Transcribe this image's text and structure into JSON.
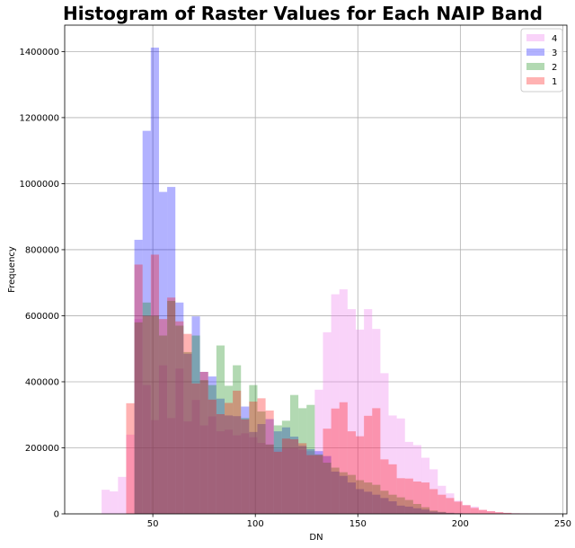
{
  "chart_data": {
    "type": "histogram",
    "title": "Histogram of Raster Values for Each NAIP Band",
    "xlabel": "DN",
    "ylabel": "Frequency",
    "xlim": [
      7,
      252
    ],
    "ylim": [
      0,
      1480000
    ],
    "xticks": [
      50,
      100,
      150,
      200,
      250
    ],
    "yticks": [
      0,
      200000,
      400000,
      600000,
      800000,
      1000000,
      1200000,
      1400000
    ],
    "grid": true,
    "legend": "top-right",
    "bin_start": 25,
    "bin_width": 4,
    "series": [
      {
        "name": "4",
        "color": "#ee82ee",
        "alpha": 0.35,
        "values": [
          73000,
          68000,
          112000,
          240000,
          590000,
          390000,
          284000,
          450000,
          290000,
          440000,
          280000,
          345000,
          268000,
          295000,
          250000,
          255000,
          238000,
          244000,
          232000,
          215000,
          210000,
          197000,
          198000,
          200000,
          195000,
          190000,
          376000,
          550000,
          665000,
          680000,
          620000,
          558000,
          620000,
          560000,
          426000,
          298000,
          289000,
          218000,
          208000,
          170000,
          135000,
          85000,
          62000,
          40000,
          27000,
          22000,
          12000,
          8000,
          5000,
          3000,
          2000,
          1500,
          1000,
          500,
          300
        ]
      },
      {
        "name": "3",
        "color": "#0000ff",
        "alpha": 0.3,
        "values": [
          0,
          0,
          0,
          0,
          830000,
          1160000,
          1412000,
          975000,
          990000,
          640000,
          485000,
          598000,
          430000,
          416000,
          349000,
          298000,
          296000,
          325000,
          248000,
          272000,
          287000,
          250000,
          262000,
          234000,
          206000,
          196000,
          190000,
          175000,
          128000,
          115000,
          95000,
          75000,
          67000,
          58000,
          48000,
          38000,
          25000,
          22000,
          17000,
          13000,
          7000,
          5000,
          3000,
          2000,
          1000,
          500,
          300,
          200,
          100,
          50,
          0,
          0,
          0,
          0,
          0
        ]
      },
      {
        "name": "2",
        "color": "#008000",
        "alpha": 0.3,
        "values": [
          0,
          0,
          0,
          0,
          580000,
          640000,
          600000,
          540000,
          645000,
          570000,
          490000,
          540000,
          405000,
          390000,
          510000,
          388000,
          450000,
          290000,
          390000,
          310000,
          210000,
          268000,
          282000,
          360000,
          320000,
          330000,
          180000,
          155000,
          140000,
          126000,
          118000,
          102000,
          95000,
          88000,
          70000,
          58000,
          50000,
          42000,
          30000,
          20000,
          10000,
          6000,
          3000,
          2000,
          1000,
          500,
          300,
          200,
          100,
          50,
          0,
          0,
          0,
          0,
          0
        ]
      },
      {
        "name": "1",
        "color": "#ff0000",
        "alpha": 0.3,
        "values": [
          0,
          0,
          0,
          335000,
          755000,
          600000,
          785000,
          590000,
          655000,
          583000,
          545000,
          395000,
          430000,
          346000,
          302000,
          336000,
          373000,
          286000,
          340000,
          350000,
          313000,
          188000,
          228000,
          226000,
          214000,
          178000,
          178000,
          258000,
          319000,
          338000,
          250000,
          235000,
          297000,
          320000,
          165000,
          150000,
          108000,
          107000,
          98000,
          95000,
          75000,
          58000,
          48000,
          37000,
          26000,
          18000,
          12000,
          8000,
          5000,
          3000,
          1500,
          700,
          300,
          100,
          50
        ]
      }
    ]
  }
}
